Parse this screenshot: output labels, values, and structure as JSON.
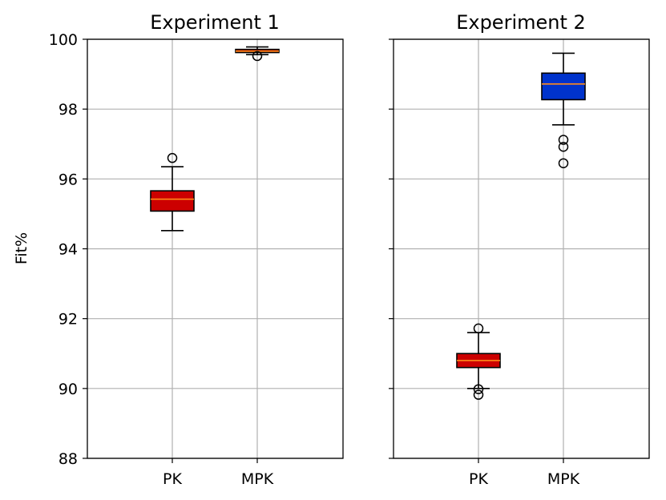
{
  "chart_data": [
    {
      "type": "box",
      "title": "Experiment 1",
      "xlabel": "",
      "ylabel": "Fit%",
      "ylim": [
        88,
        100
      ],
      "yticks": [
        88,
        90,
        92,
        94,
        96,
        98,
        100
      ],
      "categories": [
        "PK",
        "MPK"
      ],
      "grid": true,
      "boxes": [
        {
          "name": "PK",
          "whisker_low": 94.52,
          "q1": 95.08,
          "median": 95.42,
          "q3": 95.66,
          "whisker_high": 96.35,
          "outliers": [
            96.6
          ],
          "color": "#cc0000"
        },
        {
          "name": "MPK",
          "whisker_low": 99.56,
          "q1": 99.62,
          "median": 99.66,
          "q3": 99.71,
          "whisker_high": 99.78,
          "outliers": [
            99.52
          ],
          "color": "#cc0000"
        }
      ]
    },
    {
      "type": "box",
      "title": "Experiment 2",
      "xlabel": "",
      "ylabel": "",
      "ylim": [
        88,
        100
      ],
      "yticks": [
        88,
        90,
        92,
        94,
        96,
        98,
        100
      ],
      "categories": [
        "PK",
        "MPK"
      ],
      "grid": true,
      "boxes": [
        {
          "name": "PK",
          "whisker_low": 90.0,
          "q1": 90.6,
          "median": 90.8,
          "q3": 91.0,
          "whisker_high": 91.6,
          "outliers": [
            91.72,
            89.98,
            89.82
          ],
          "color": "#cc0000"
        },
        {
          "name": "MPK",
          "whisker_low": 97.55,
          "q1": 98.27,
          "median": 98.72,
          "q3": 99.03,
          "whisker_high": 99.6,
          "outliers": [
            97.12,
            96.92,
            96.45
          ],
          "color": "#0033cc"
        }
      ]
    }
  ],
  "colors": {
    "median": "#ff8c1a",
    "grid": "#b0b0b0"
  }
}
